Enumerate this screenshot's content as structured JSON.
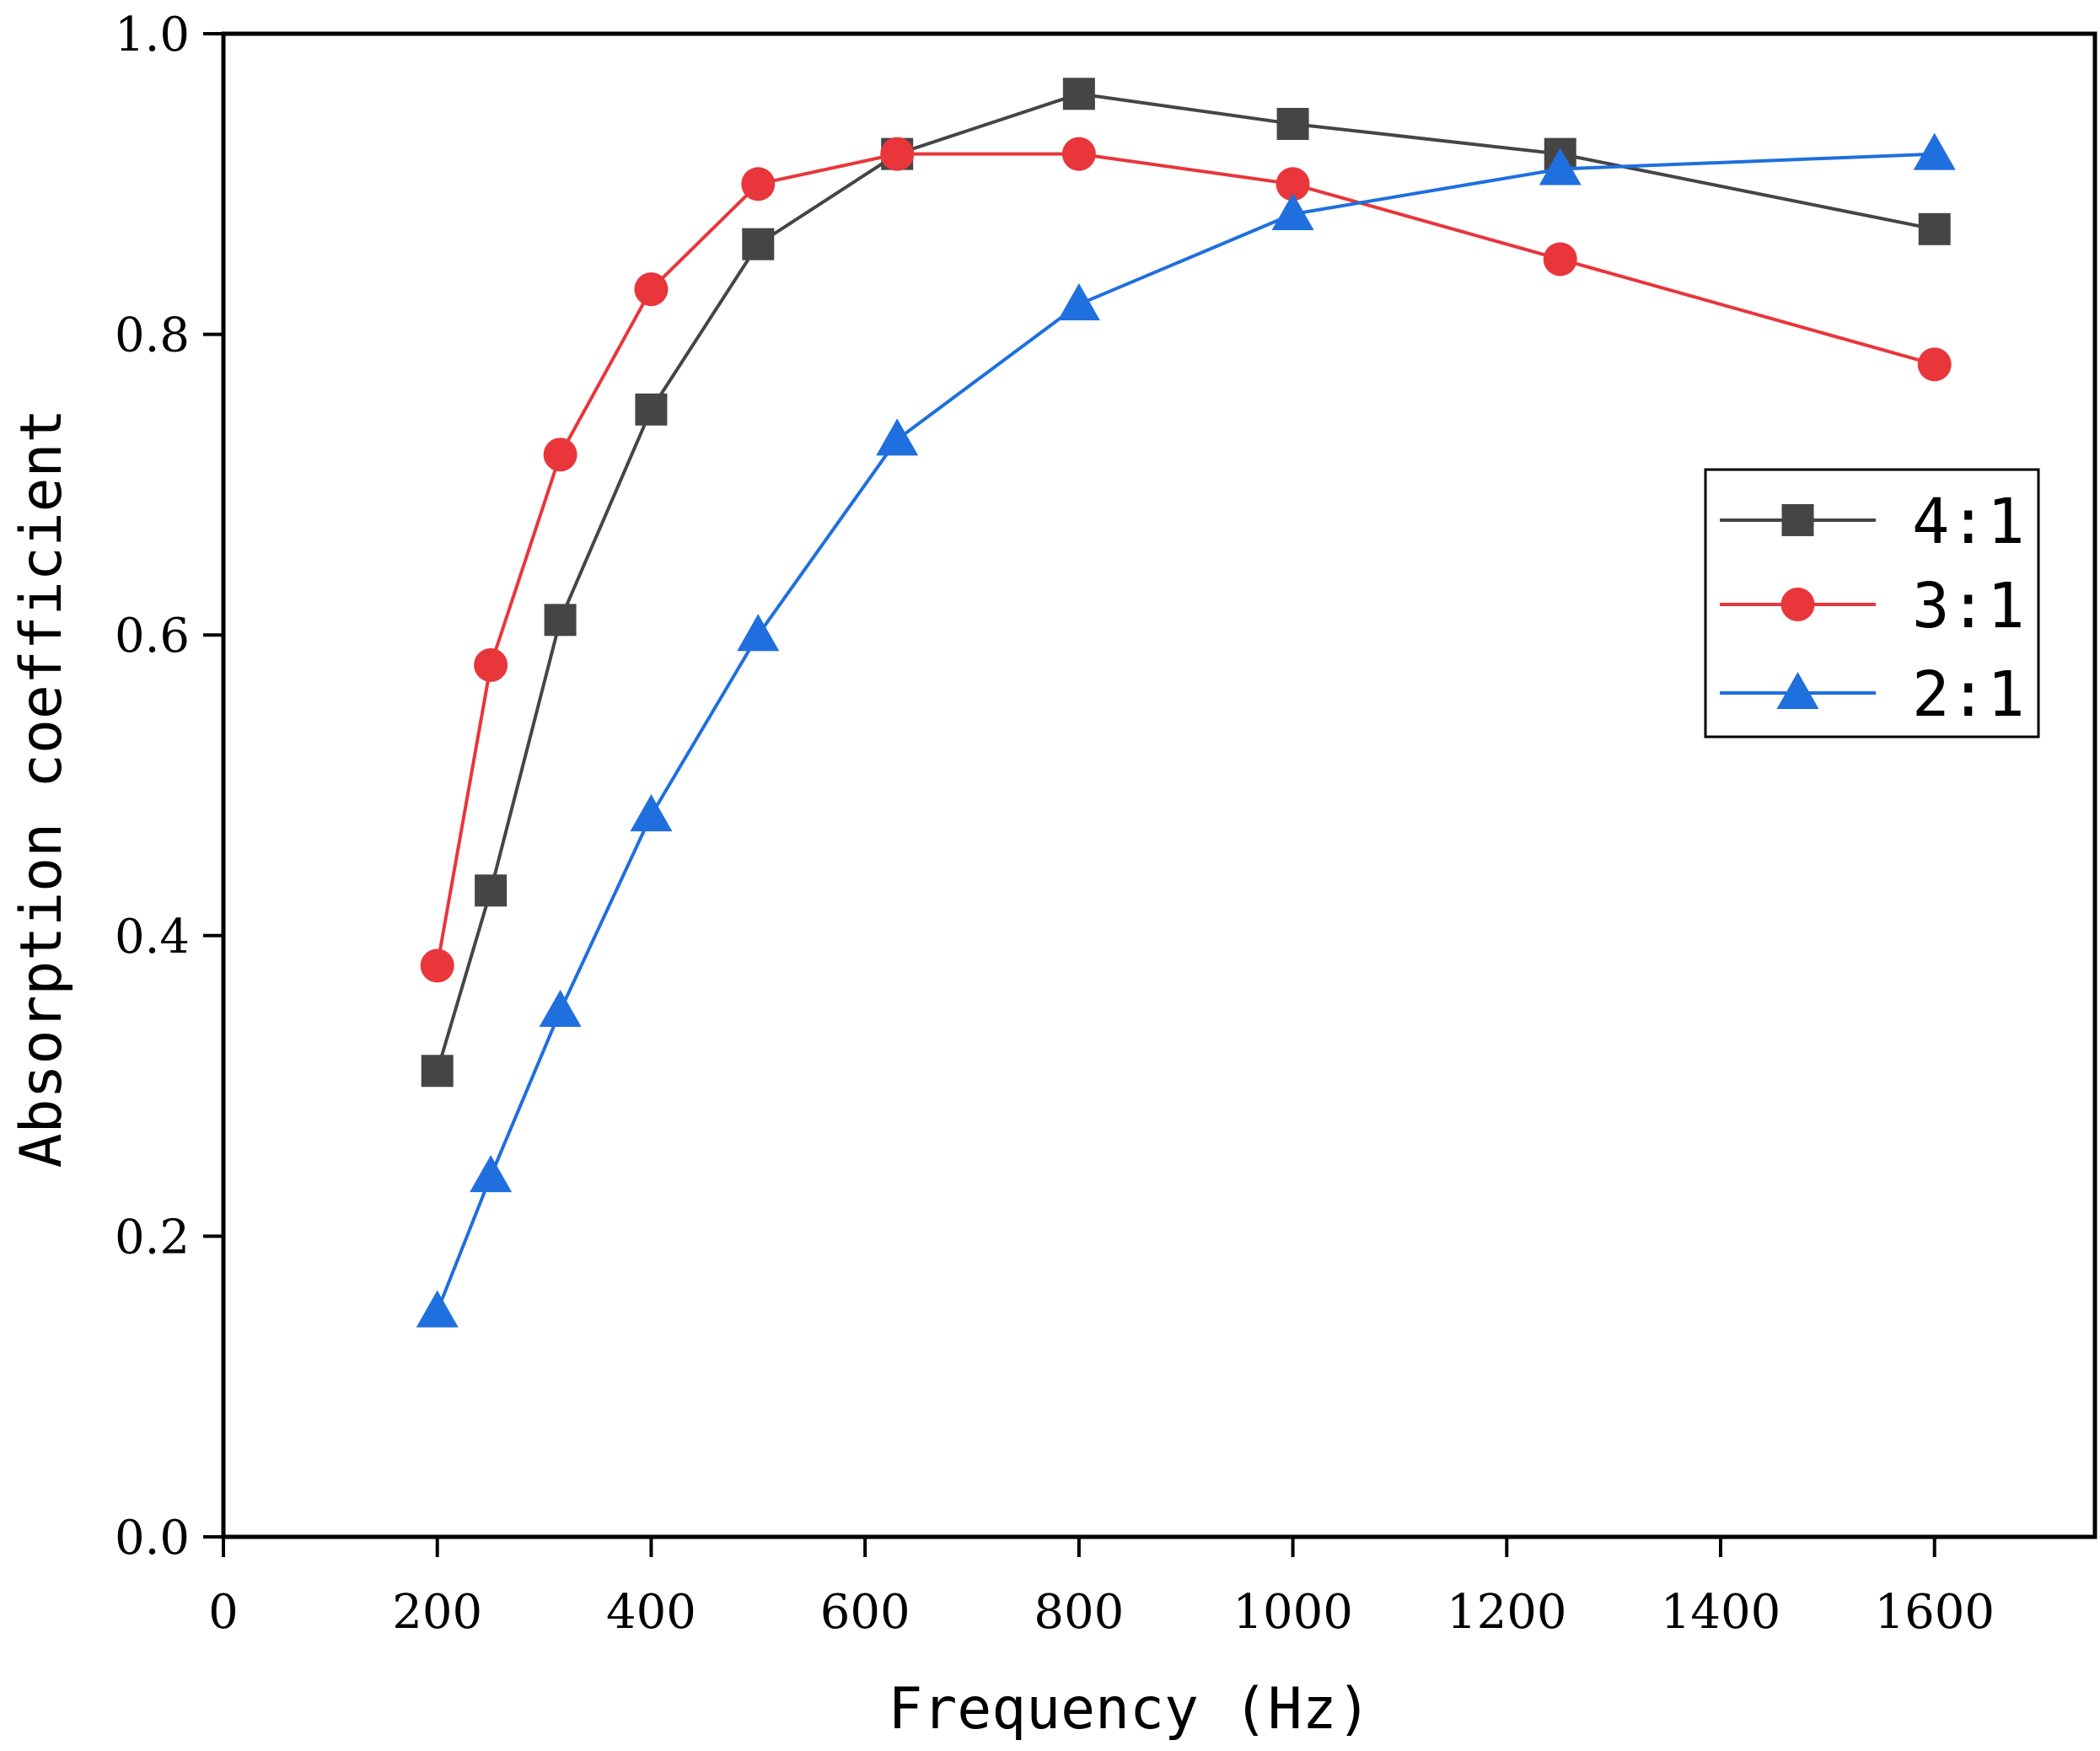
{
  "chart_data": {
    "type": "line",
    "title": "",
    "xlabel": "Frequency (Hz)",
    "ylabel": "Absorption coefficient",
    "xlim": [
      0,
      1750
    ],
    "ylim": [
      0.0,
      1.0
    ],
    "x_ticks": [
      0,
      200,
      400,
      600,
      800,
      1000,
      1200,
      1400,
      1600
    ],
    "x_tick_labels": [
      "0",
      "200",
      "400",
      "600",
      "800",
      "1000",
      "1200",
      "1400",
      "1600"
    ],
    "y_ticks": [
      0.0,
      0.2,
      0.4,
      0.6,
      0.8,
      1.0
    ],
    "y_tick_labels": [
      "0.0",
      "0.2",
      "0.4",
      "0.6",
      "0.8",
      "1.0"
    ],
    "grid": false,
    "legend_position": "right",
    "x": [
      200,
      250,
      315,
      400,
      500,
      630,
      800,
      1000,
      1250,
      1600
    ],
    "series": [
      {
        "name": "4:1",
        "marker": "square",
        "color": "#454545",
        "values": [
          0.31,
          0.43,
          0.61,
          0.75,
          0.86,
          0.92,
          0.96,
          0.94,
          0.92,
          0.87
        ]
      },
      {
        "name": "3:1",
        "marker": "circle",
        "color": "#e8363b",
        "values": [
          0.38,
          0.58,
          0.72,
          0.83,
          0.9,
          0.92,
          0.92,
          0.9,
          0.85,
          0.78
        ]
      },
      {
        "name": "2:1",
        "marker": "triangle",
        "color": "#1f6fde",
        "values": [
          0.15,
          0.24,
          0.35,
          0.48,
          0.6,
          0.73,
          0.82,
          0.88,
          0.91,
          0.92
        ]
      }
    ]
  }
}
